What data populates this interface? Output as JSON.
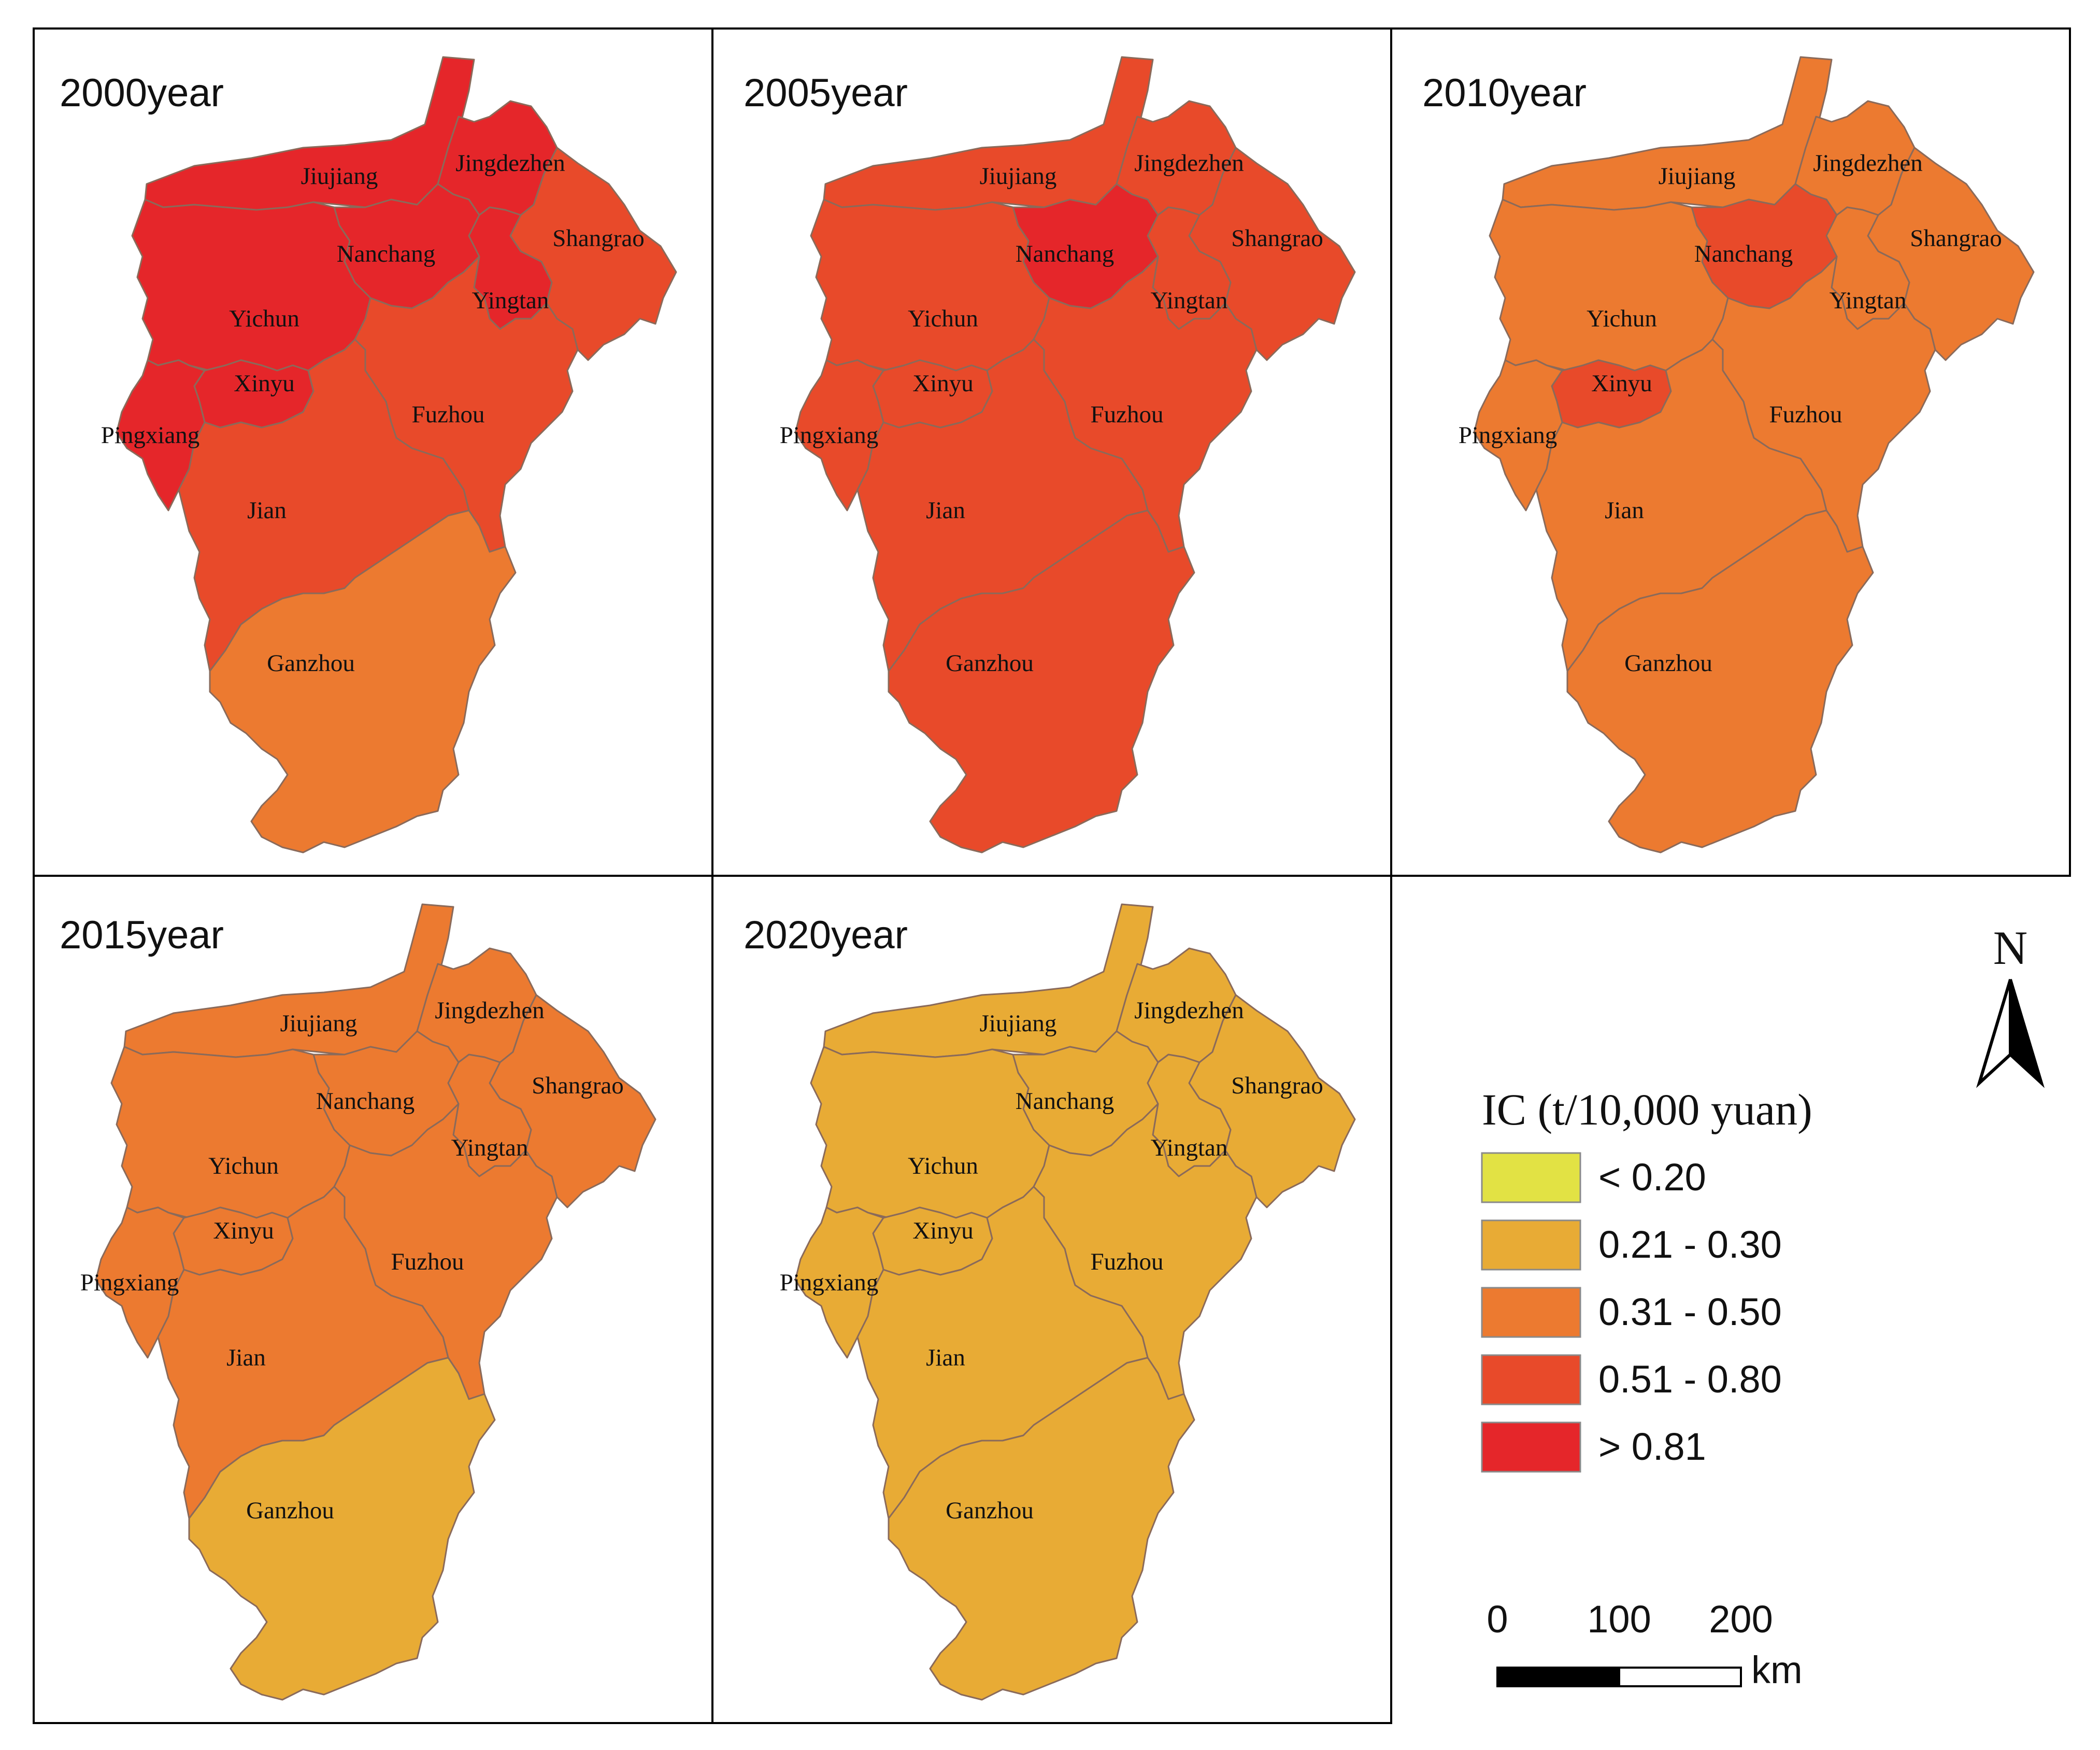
{
  "map": {
    "panels": [
      {
        "year_label": "2000year",
        "fills": {
          "Jiujiang": "#e5262a",
          "Jingdezhen": "#e5262a",
          "Nanchang": "#e5262a",
          "Shangrao": "#e84a2a",
          "Yingtan": "#e5262a",
          "Yichun": "#e5262a",
          "Xinyu": "#e5262a",
          "Pingxiang": "#e5262a",
          "Fuzhou": "#e84a2a",
          "Jian": "#e84a2a",
          "Ganzhou": "#ec7a30"
        }
      },
      {
        "year_label": "2005year",
        "fills": {
          "Jiujiang": "#e84a2a",
          "Jingdezhen": "#e84a2a",
          "Nanchang": "#e5262a",
          "Shangrao": "#e84a2a",
          "Yingtan": "#e84a2a",
          "Yichun": "#e84a2a",
          "Xinyu": "#e84a2a",
          "Pingxiang": "#e84a2a",
          "Fuzhou": "#e84a2a",
          "Jian": "#e84a2a",
          "Ganzhou": "#e84a2a"
        }
      },
      {
        "year_label": "2010year",
        "fills": {
          "Jiujiang": "#ec7a30",
          "Jingdezhen": "#ec7a30",
          "Nanchang": "#e84a2a",
          "Shangrao": "#ec7a30",
          "Yingtan": "#ec7a30",
          "Yichun": "#ec7a30",
          "Xinyu": "#e84a2a",
          "Pingxiang": "#ec7a30",
          "Fuzhou": "#ec7a30",
          "Jian": "#ec7a30",
          "Ganzhou": "#ec7a30"
        }
      },
      {
        "year_label": "2015year",
        "fills": {
          "Jiujiang": "#ec7a30",
          "Jingdezhen": "#ec7a30",
          "Nanchang": "#ec7a30",
          "Shangrao": "#ec7a30",
          "Yingtan": "#ec7a30",
          "Yichun": "#ec7a30",
          "Xinyu": "#ec7a30",
          "Pingxiang": "#ec7a30",
          "Fuzhou": "#ec7a30",
          "Jian": "#ec7a30",
          "Ganzhou": "#e8ab35"
        }
      },
      {
        "year_label": "2020year",
        "fills": {
          "Jiujiang": "#e8ab35",
          "Jingdezhen": "#e8ab35",
          "Nanchang": "#e8ab35",
          "Shangrao": "#e8ab35",
          "Yingtan": "#e8ab35",
          "Yichun": "#e8ab35",
          "Xinyu": "#e8ab35",
          "Pingxiang": "#e8ab35",
          "Fuzhou": "#e8ab35",
          "Jian": "#e8ab35",
          "Ganzhou": "#e8ab35"
        }
      }
    ],
    "city_labels": {
      "Jiujiang": "Jiujiang",
      "Jingdezhen": "Jingdezhen",
      "Nanchang": "Nanchang",
      "Shangrao": "Shangrao",
      "Yingtan": "Yingtan",
      "Yichun": "Yichun",
      "Xinyu": "Xinyu",
      "Pingxiang": "Pingxiang",
      "Fuzhou": "Fuzhou",
      "Jian": "Jian",
      "Ganzhou": "Ganzhou"
    }
  },
  "legend": {
    "title": "IC (t/10,000 yuan)",
    "items": [
      {
        "label": "< 0.20",
        "color": "#e2e244"
      },
      {
        "label": "0.21 - 0.30",
        "color": "#e8ab35"
      },
      {
        "label": "0.31 - 0.50",
        "color": "#ec7a30"
      },
      {
        "label": "0.51 - 0.80",
        "color": "#e84a2a"
      },
      {
        "label": "> 0.81",
        "color": "#e5262a"
      }
    ]
  },
  "north_arrow": {
    "letter": "N"
  },
  "scale_bar": {
    "ticks": [
      "0",
      "100",
      "200"
    ],
    "unit": "km"
  }
}
